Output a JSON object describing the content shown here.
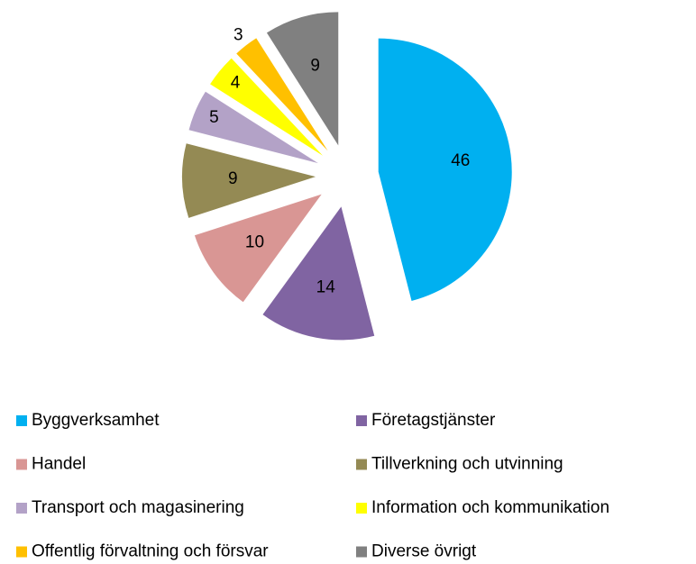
{
  "chart_data": {
    "type": "pie",
    "categories": [
      "Byggverksamhet",
      "Företagstjänster",
      "Handel",
      "Tillverkning och utvinning",
      "Transport och magasinering",
      "Information och kommunikation",
      "Offentlig förvaltning och försvar",
      "Diverse övrigt"
    ],
    "values": [
      46,
      14,
      10,
      9,
      5,
      4,
      3,
      9
    ],
    "colors": [
      "#00b0f0",
      "#8064a2",
      "#d99694",
      "#948a54",
      "#b3a2c7",
      "#ffff00",
      "#ffc000",
      "#808080"
    ],
    "legend": "bottom"
  }
}
